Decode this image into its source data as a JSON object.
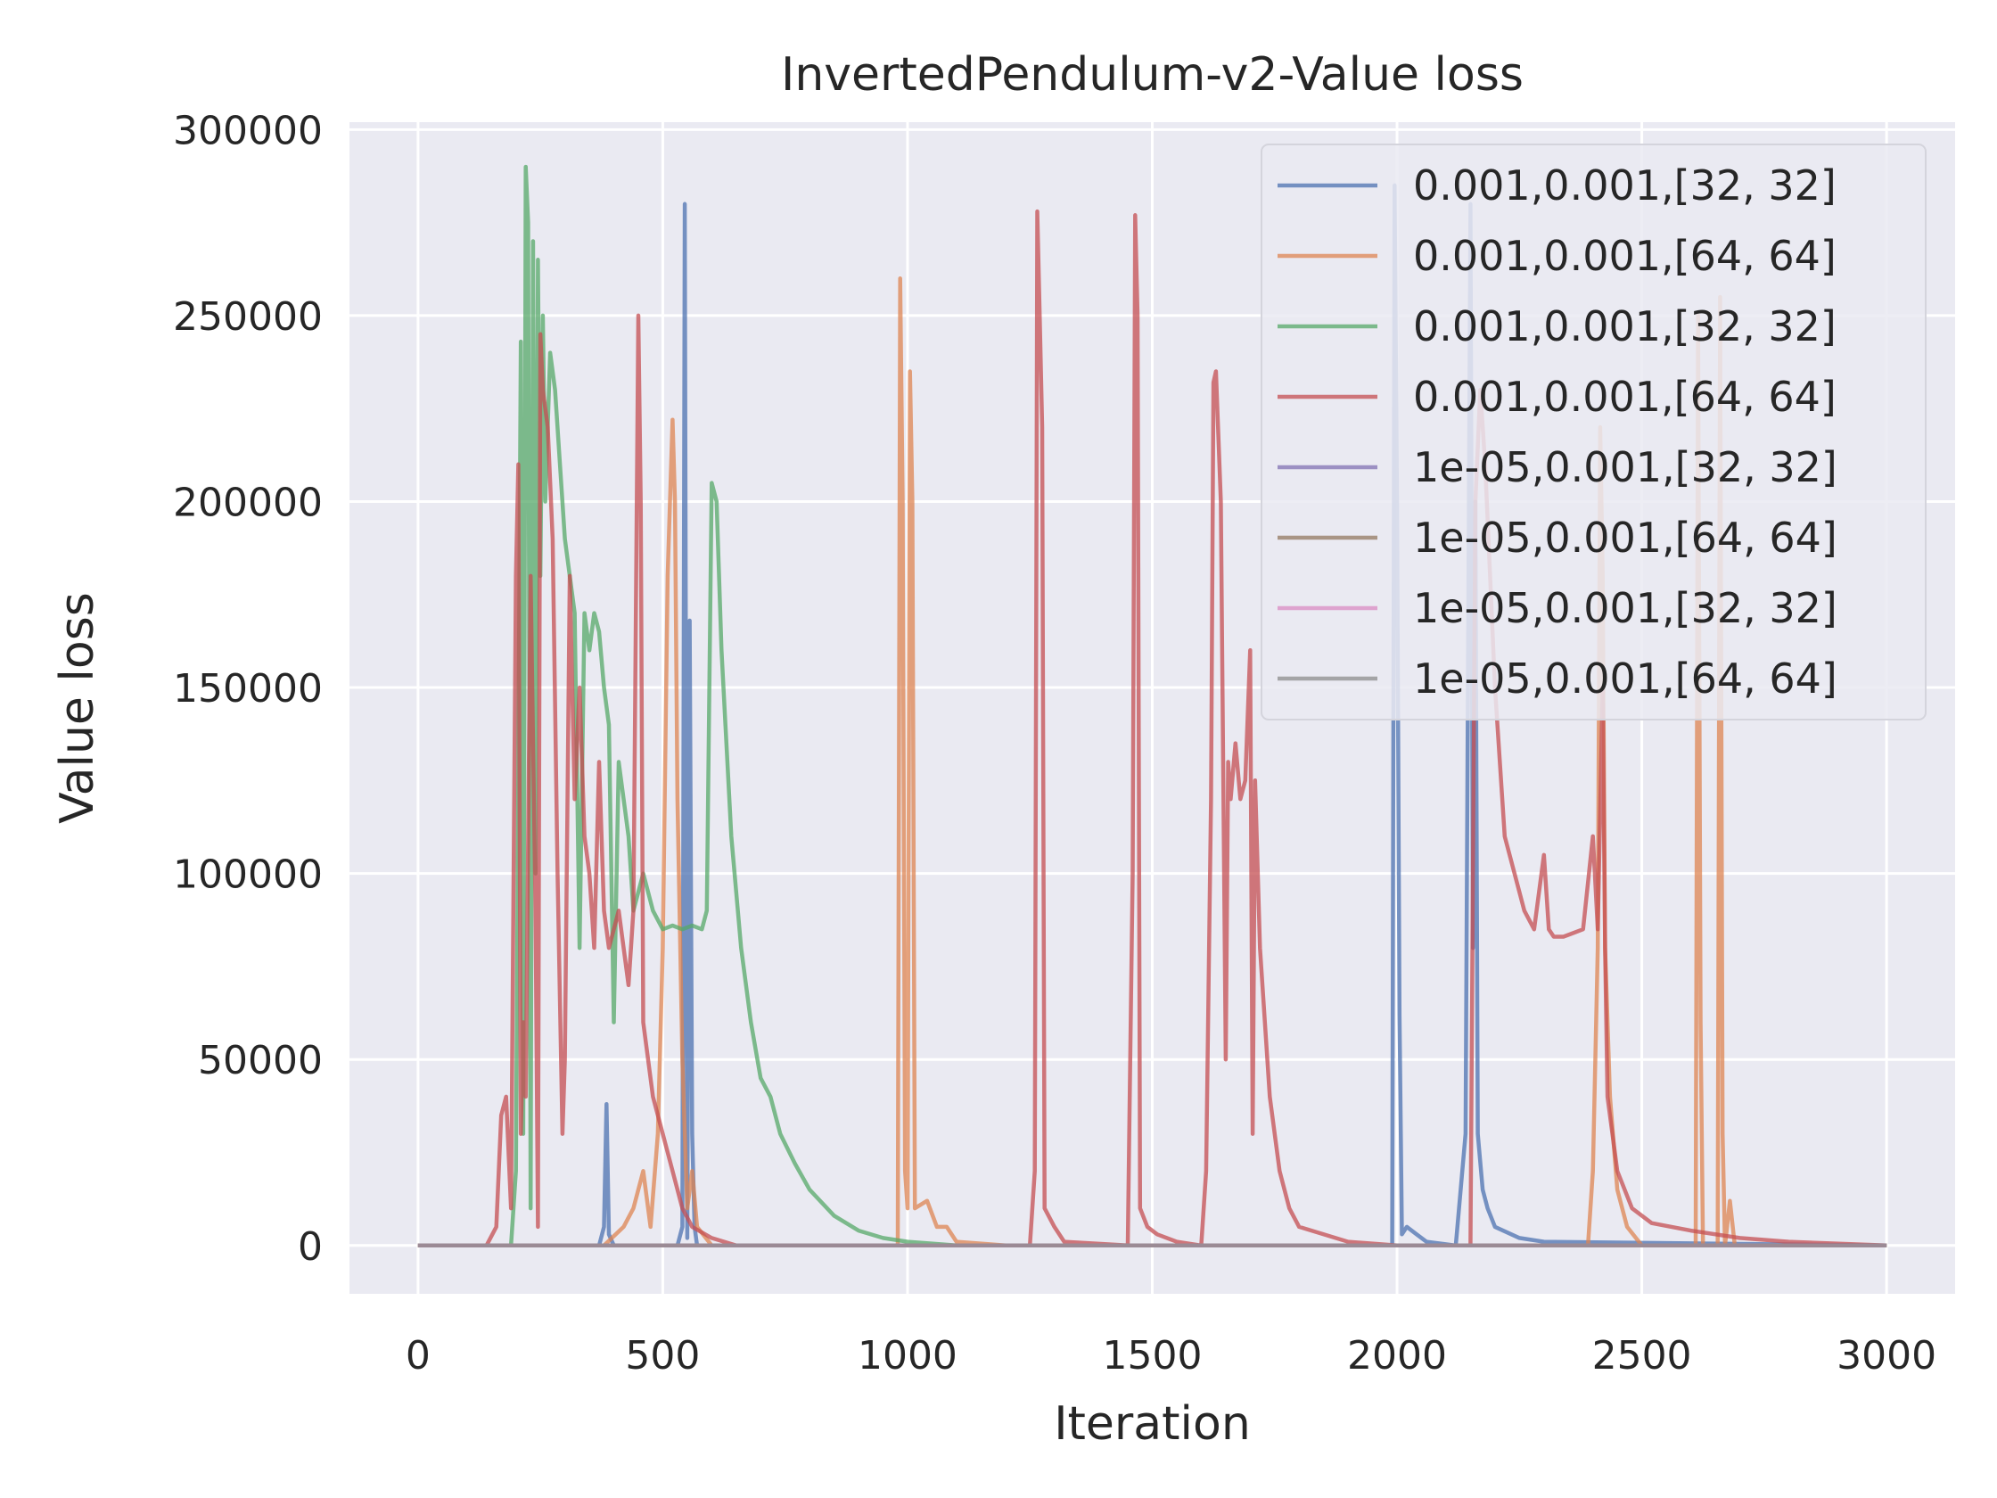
{
  "chart_data": {
    "type": "line",
    "title": "InvertedPendulum-v2-Value loss",
    "xlabel": "Iteration",
    "ylabel": "Value loss",
    "xlim": [
      -140,
      3140
    ],
    "ylim": [
      -13000,
      302000
    ],
    "xticks": [
      0,
      500,
      1000,
      1500,
      2000,
      2500,
      3000
    ],
    "yticks": [
      0,
      50000,
      100000,
      150000,
      200000,
      250000,
      300000
    ],
    "grid": true,
    "legend_position": "upper-right",
    "series": [
      {
        "name": "0.001,0.001,[32, 32]",
        "color": "#4c72b0",
        "points": [
          [
            0,
            0
          ],
          [
            370,
            0
          ],
          [
            380,
            5000
          ],
          [
            385,
            38000
          ],
          [
            390,
            3000
          ],
          [
            400,
            0
          ],
          [
            530,
            0
          ],
          [
            540,
            5000
          ],
          [
            545,
            280000
          ],
          [
            550,
            2000
          ],
          [
            555,
            168000
          ],
          [
            560,
            30000
          ],
          [
            565,
            5000
          ],
          [
            570,
            0
          ],
          [
            1990,
            0
          ],
          [
            1995,
            285000
          ],
          [
            2000,
            200000
          ],
          [
            2005,
            62000
          ],
          [
            2010,
            3000
          ],
          [
            2020,
            5000
          ],
          [
            2040,
            3000
          ],
          [
            2060,
            1000
          ],
          [
            2120,
            0
          ],
          [
            2140,
            30000
          ],
          [
            2150,
            280000
          ],
          [
            2155,
            80000
          ],
          [
            2160,
            200000
          ],
          [
            2165,
            30000
          ],
          [
            2175,
            15000
          ],
          [
            2185,
            10000
          ],
          [
            2200,
            5000
          ],
          [
            2250,
            2000
          ],
          [
            2300,
            1000
          ],
          [
            3000,
            0
          ]
        ]
      },
      {
        "name": "0.001,0.001,[64, 64]",
        "color": "#dd8452",
        "points": [
          [
            0,
            0
          ],
          [
            380,
            0
          ],
          [
            420,
            5000
          ],
          [
            440,
            10000
          ],
          [
            460,
            20000
          ],
          [
            475,
            5000
          ],
          [
            490,
            30000
          ],
          [
            500,
            80000
          ],
          [
            510,
            180000
          ],
          [
            520,
            222000
          ],
          [
            525,
            200000
          ],
          [
            530,
            120000
          ],
          [
            540,
            50000
          ],
          [
            550,
            10000
          ],
          [
            560,
            20000
          ],
          [
            570,
            5000
          ],
          [
            600,
            0
          ],
          [
            980,
            0
          ],
          [
            985,
            260000
          ],
          [
            990,
            200000
          ],
          [
            995,
            20000
          ],
          [
            1000,
            10000
          ],
          [
            1005,
            235000
          ],
          [
            1010,
            200000
          ],
          [
            1015,
            10000
          ],
          [
            1040,
            12000
          ],
          [
            1060,
            5000
          ],
          [
            1080,
            5000
          ],
          [
            1100,
            1000
          ],
          [
            1200,
            0
          ],
          [
            2390,
            0
          ],
          [
            2400,
            20000
          ],
          [
            2410,
            80000
          ],
          [
            2415,
            220000
          ],
          [
            2420,
            180000
          ],
          [
            2425,
            80000
          ],
          [
            2435,
            40000
          ],
          [
            2450,
            15000
          ],
          [
            2470,
            5000
          ],
          [
            2500,
            0
          ],
          [
            2610,
            0
          ],
          [
            2615,
            250000
          ],
          [
            2620,
            60000
          ],
          [
            2625,
            0
          ],
          [
            2655,
            0
          ],
          [
            2660,
            255000
          ],
          [
            2665,
            30000
          ],
          [
            2670,
            0
          ],
          [
            2680,
            12000
          ],
          [
            2690,
            0
          ],
          [
            3000,
            0
          ]
        ]
      },
      {
        "name": "0.001,0.001,[32, 32]",
        "color": "#55a868",
        "points": [
          [
            0,
            0
          ],
          [
            190,
            0
          ],
          [
            200,
            20000
          ],
          [
            210,
            243000
          ],
          [
            215,
            30000
          ],
          [
            220,
            290000
          ],
          [
            225,
            275000
          ],
          [
            230,
            10000
          ],
          [
            235,
            270000
          ],
          [
            240,
            100000
          ],
          [
            245,
            265000
          ],
          [
            250,
            180000
          ],
          [
            255,
            250000
          ],
          [
            260,
            200000
          ],
          [
            270,
            240000
          ],
          [
            280,
            230000
          ],
          [
            290,
            210000
          ],
          [
            300,
            190000
          ],
          [
            310,
            180000
          ],
          [
            320,
            170000
          ],
          [
            330,
            80000
          ],
          [
            340,
            170000
          ],
          [
            350,
            160000
          ],
          [
            360,
            170000
          ],
          [
            370,
            165000
          ],
          [
            380,
            150000
          ],
          [
            390,
            140000
          ],
          [
            400,
            60000
          ],
          [
            410,
            130000
          ],
          [
            420,
            120000
          ],
          [
            430,
            110000
          ],
          [
            440,
            90000
          ],
          [
            460,
            100000
          ],
          [
            480,
            90000
          ],
          [
            500,
            85000
          ],
          [
            520,
            86000
          ],
          [
            540,
            85000
          ],
          [
            560,
            86000
          ],
          [
            580,
            85000
          ],
          [
            590,
            90000
          ],
          [
            600,
            205000
          ],
          [
            610,
            200000
          ],
          [
            620,
            160000
          ],
          [
            640,
            110000
          ],
          [
            660,
            80000
          ],
          [
            680,
            60000
          ],
          [
            700,
            45000
          ],
          [
            720,
            40000
          ],
          [
            740,
            30000
          ],
          [
            770,
            22000
          ],
          [
            800,
            15000
          ],
          [
            850,
            8000
          ],
          [
            900,
            4000
          ],
          [
            950,
            2000
          ],
          [
            1000,
            1000
          ],
          [
            1100,
            0
          ],
          [
            3000,
            0
          ]
        ]
      },
      {
        "name": "0.001,0.001,[64, 64]",
        "color": "#c44e52",
        "points": [
          [
            0,
            0
          ],
          [
            140,
            0
          ],
          [
            160,
            5000
          ],
          [
            170,
            35000
          ],
          [
            180,
            40000
          ],
          [
            190,
            10000
          ],
          [
            200,
            180000
          ],
          [
            205,
            210000
          ],
          [
            210,
            30000
          ],
          [
            215,
            60000
          ],
          [
            220,
            40000
          ],
          [
            230,
            180000
          ],
          [
            240,
            90000
          ],
          [
            245,
            5000
          ],
          [
            250,
            245000
          ],
          [
            255,
            230000
          ],
          [
            265,
            220000
          ],
          [
            275,
            190000
          ],
          [
            285,
            100000
          ],
          [
            295,
            30000
          ],
          [
            300,
            50000
          ],
          [
            310,
            180000
          ],
          [
            320,
            120000
          ],
          [
            330,
            150000
          ],
          [
            340,
            110000
          ],
          [
            350,
            100000
          ],
          [
            360,
            80000
          ],
          [
            370,
            130000
          ],
          [
            380,
            90000
          ],
          [
            390,
            80000
          ],
          [
            400,
            85000
          ],
          [
            410,
            90000
          ],
          [
            420,
            80000
          ],
          [
            430,
            70000
          ],
          [
            440,
            90000
          ],
          [
            450,
            250000
          ],
          [
            455,
            200000
          ],
          [
            460,
            60000
          ],
          [
            480,
            40000
          ],
          [
            500,
            30000
          ],
          [
            520,
            20000
          ],
          [
            540,
            10000
          ],
          [
            560,
            5000
          ],
          [
            600,
            2000
          ],
          [
            650,
            0
          ],
          [
            1250,
            0
          ],
          [
            1260,
            20000
          ],
          [
            1265,
            278000
          ],
          [
            1270,
            250000
          ],
          [
            1275,
            220000
          ],
          [
            1280,
            10000
          ],
          [
            1300,
            5000
          ],
          [
            1320,
            1000
          ],
          [
            1450,
            0
          ],
          [
            1460,
            100000
          ],
          [
            1465,
            277000
          ],
          [
            1470,
            250000
          ],
          [
            1475,
            10000
          ],
          [
            1490,
            5000
          ],
          [
            1510,
            3000
          ],
          [
            1550,
            1000
          ],
          [
            1600,
            0
          ],
          [
            1610,
            20000
          ],
          [
            1620,
            120000
          ],
          [
            1625,
            232000
          ],
          [
            1630,
            235000
          ],
          [
            1640,
            200000
          ],
          [
            1650,
            50000
          ],
          [
            1655,
            130000
          ],
          [
            1660,
            120000
          ],
          [
            1670,
            135000
          ],
          [
            1680,
            120000
          ],
          [
            1690,
            125000
          ],
          [
            1700,
            160000
          ],
          [
            1705,
            30000
          ],
          [
            1710,
            125000
          ],
          [
            1720,
            80000
          ],
          [
            1740,
            40000
          ],
          [
            1760,
            20000
          ],
          [
            1780,
            10000
          ],
          [
            1800,
            5000
          ],
          [
            1900,
            1000
          ],
          [
            2000,
            0
          ],
          [
            2150,
            0
          ],
          [
            2160,
            200000
          ],
          [
            2170,
            230000
          ],
          [
            2180,
            210000
          ],
          [
            2200,
            150000
          ],
          [
            2220,
            110000
          ],
          [
            2240,
            100000
          ],
          [
            2260,
            90000
          ],
          [
            2280,
            85000
          ],
          [
            2300,
            105000
          ],
          [
            2310,
            85000
          ],
          [
            2320,
            83000
          ],
          [
            2340,
            83000
          ],
          [
            2360,
            84000
          ],
          [
            2380,
            85000
          ],
          [
            2400,
            110000
          ],
          [
            2410,
            85000
          ],
          [
            2420,
            150000
          ],
          [
            2425,
            80000
          ],
          [
            2430,
            40000
          ],
          [
            2450,
            20000
          ],
          [
            2480,
            10000
          ],
          [
            2520,
            6000
          ],
          [
            2600,
            4000
          ],
          [
            2700,
            2000
          ],
          [
            2800,
            1000
          ],
          [
            3000,
            0
          ]
        ]
      },
      {
        "name": "1e-05,0.001,[32, 32]",
        "color": "#8172b3",
        "points": [
          [
            0,
            0
          ],
          [
            3000,
            0
          ]
        ]
      },
      {
        "name": "1e-05,0.001,[64, 64]",
        "color": "#937860",
        "points": [
          [
            0,
            0
          ],
          [
            3000,
            0
          ]
        ]
      },
      {
        "name": "1e-05,0.001,[32, 32]",
        "color": "#da8bc3",
        "points": [
          [
            0,
            0
          ],
          [
            3000,
            0
          ]
        ]
      },
      {
        "name": "1e-05,0.001,[64, 64]",
        "color": "#8c8c8c",
        "points": [
          [
            0,
            0
          ],
          [
            3000,
            0
          ]
        ]
      }
    ]
  }
}
